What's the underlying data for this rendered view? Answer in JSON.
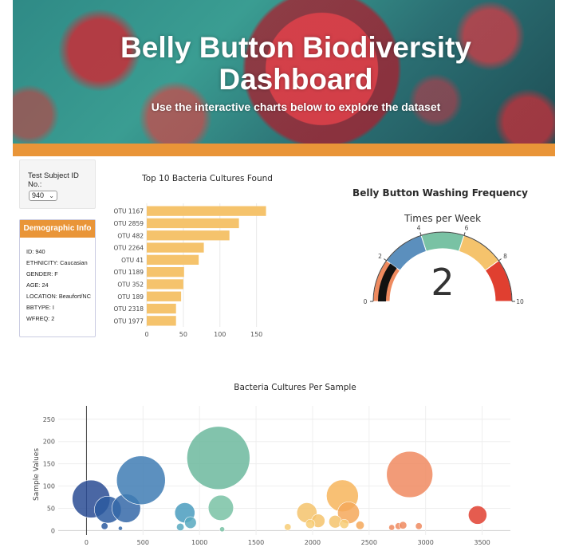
{
  "header": {
    "title_line1": "Belly Button Biodiversity",
    "title_line2": "Dashboard",
    "subtitle": "Use the interactive charts below to explore the dataset",
    "accent_color": "#e99538"
  },
  "selector": {
    "label": "Test Subject ID No.:",
    "value": "940"
  },
  "demographic": {
    "title": "Demographic Info",
    "lines": [
      "ID: 940",
      "ETHNICITY: Caucasian",
      "GENDER: F",
      "AGE: 24",
      "LOCATION: Beaufort/NC",
      "BBTYPE: I",
      "WFREQ: 2"
    ]
  },
  "chart_data": [
    {
      "type": "bar",
      "orientation": "horizontal",
      "title": "Top 10 Bacteria Cultures Found",
      "categories": [
        "OTU 1167",
        "OTU 2859",
        "OTU 482",
        "OTU 2264",
        "OTU 41",
        "OTU 1189",
        "OTU 352",
        "OTU 189",
        "OTU 2318",
        "OTU 1977"
      ],
      "values": [
        163,
        126,
        113,
        78,
        71,
        51,
        50,
        47,
        40,
        40
      ],
      "xlim": [
        0,
        170
      ],
      "xticks": [
        0,
        50,
        100,
        150
      ],
      "color": "#f5c36c"
    },
    {
      "type": "gauge",
      "title": "Belly Button Washing Frequency",
      "subtitle": "Times per Week",
      "value": 2,
      "range": [
        0,
        10
      ],
      "ticks": [
        0,
        2,
        4,
        6,
        8,
        10
      ],
      "steps": [
        {
          "range": [
            0,
            2
          ],
          "color": "#ee8a5f"
        },
        {
          "range": [
            2,
            4
          ],
          "color": "#5b8fbd"
        },
        {
          "range": [
            4,
            6
          ],
          "color": "#79c2a4"
        },
        {
          "range": [
            6,
            8
          ],
          "color": "#f5c36c"
        },
        {
          "range": [
            8,
            10
          ],
          "color": "#e03f30"
        }
      ],
      "bar_color": "#111111"
    },
    {
      "type": "scatter",
      "mode": "bubble",
      "title": "Bacteria Cultures Per Sample",
      "ylabel": "Sample Values",
      "xlim": [
        -250,
        3750
      ],
      "ylim": [
        -10,
        280
      ],
      "xticks": [
        0,
        500,
        1000,
        1500,
        2000,
        2500,
        3000,
        3500
      ],
      "yticks": [
        0,
        50,
        100,
        150,
        200,
        250
      ],
      "points": [
        {
          "x": 41,
          "y": 71,
          "color": "#2a4c94"
        },
        {
          "x": 189,
          "y": 47,
          "color": "#2c5ba0"
        },
        {
          "x": 352,
          "y": 50,
          "color": "#3569a8"
        },
        {
          "x": 482,
          "y": 113,
          "color": "#3f7db4"
        },
        {
          "x": 160,
          "y": 10,
          "color": "#2c5ba0"
        },
        {
          "x": 300,
          "y": 5,
          "color": "#3569a8"
        },
        {
          "x": 870,
          "y": 40,
          "color": "#4a9cbe"
        },
        {
          "x": 920,
          "y": 18,
          "color": "#58a9c0"
        },
        {
          "x": 830,
          "y": 8,
          "color": "#58a9c0"
        },
        {
          "x": 1167,
          "y": 163,
          "color": "#6cb89e"
        },
        {
          "x": 1189,
          "y": 51,
          "color": "#79c2a4"
        },
        {
          "x": 1200,
          "y": 3,
          "color": "#79c2a4"
        },
        {
          "x": 1950,
          "y": 40,
          "color": "#f5c36c"
        },
        {
          "x": 2050,
          "y": 22,
          "color": "#f5c36c"
        },
        {
          "x": 1980,
          "y": 15,
          "color": "#f7cd76"
        },
        {
          "x": 2264,
          "y": 78,
          "color": "#f7b55c"
        },
        {
          "x": 2318,
          "y": 40,
          "color": "#f4a85a"
        },
        {
          "x": 2200,
          "y": 20,
          "color": "#f5c36c"
        },
        {
          "x": 2280,
          "y": 15,
          "color": "#f7cd76"
        },
        {
          "x": 2420,
          "y": 12,
          "color": "#f4a85a"
        },
        {
          "x": 1780,
          "y": 8,
          "color": "#f7cd76"
        },
        {
          "x": 2859,
          "y": 126,
          "color": "#f08a60"
        },
        {
          "x": 2760,
          "y": 10,
          "color": "#ee8a5f"
        },
        {
          "x": 2800,
          "y": 12,
          "color": "#ee8a5f"
        },
        {
          "x": 2700,
          "y": 7,
          "color": "#ee8a5f"
        },
        {
          "x": 2940,
          "y": 10,
          "color": "#ee8a5f"
        },
        {
          "x": 3460,
          "y": 35,
          "color": "#e03f30"
        }
      ],
      "sizes": [
        45,
        32,
        34,
        58,
        8,
        5,
        24,
        14,
        9,
        75,
        30,
        6,
        24,
        16,
        11,
        38,
        26,
        15,
        11,
        10,
        8,
        55,
        8,
        9,
        7,
        8,
        22
      ]
    }
  ]
}
